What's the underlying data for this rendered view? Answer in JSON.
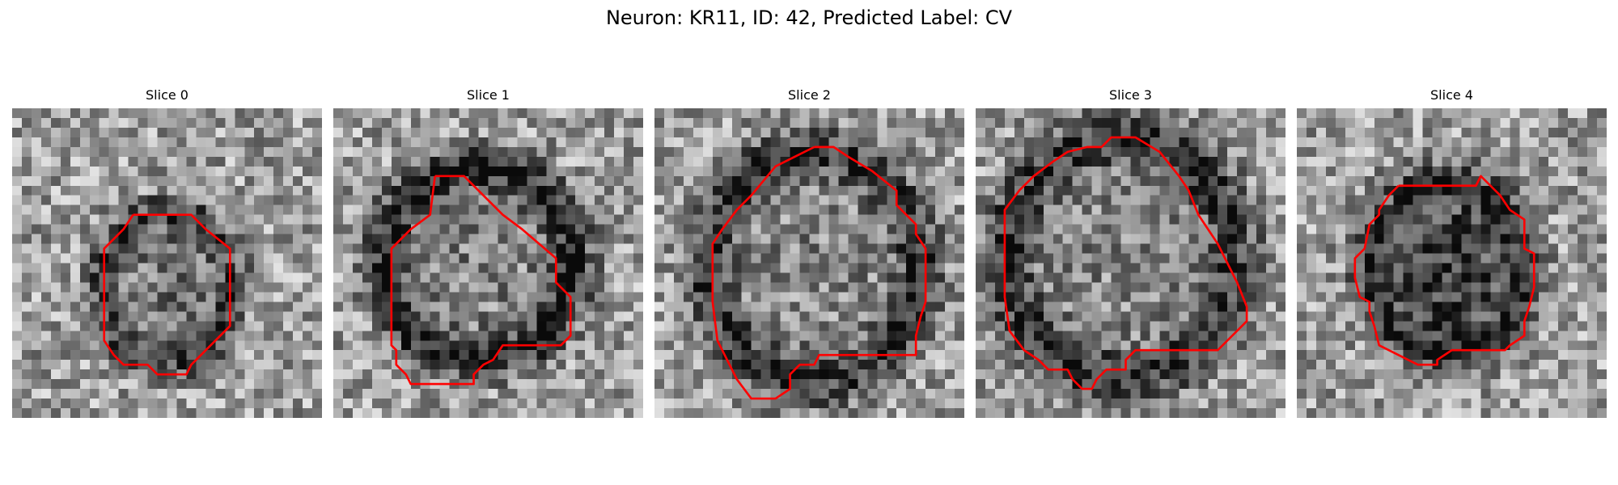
{
  "figure": {
    "title": "Neuron: KR11, ID: 42, Predicted Label: CV"
  },
  "panels": [
    {
      "title": "Slice 0"
    },
    {
      "title": "Slice 1"
    },
    {
      "title": "Slice 2"
    },
    {
      "title": "Slice 3"
    },
    {
      "title": "Slice 4"
    }
  ],
  "colors": {
    "contour": "#ff0000",
    "background": "#ffffff"
  },
  "image": {
    "grid_size": 32,
    "colormap": "gray"
  }
}
